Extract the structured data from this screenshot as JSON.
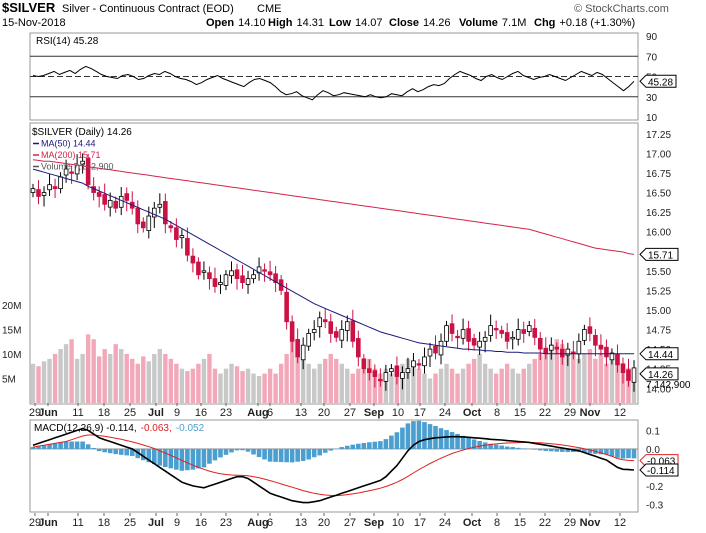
{
  "header": {
    "symbol": "$SILVER",
    "name": "Silver - Continuous Contract (EOD)",
    "exchange": "CME",
    "watermark": "© StockCharts.com",
    "date": "15-Nov-2018",
    "open_label": "Open",
    "open": "14.10",
    "high_label": "High",
    "high": "14.31",
    "low_label": "Low",
    "low": "14.07",
    "close_label": "Close",
    "close": "14.26",
    "volume_label": "Volume",
    "volume": "7.1M",
    "chg_label": "Chg",
    "chg": "+0.18 (+1.30%)"
  },
  "colors": {
    "up": "#000000",
    "down": "#cc1144",
    "ma50": "#1a1a7a",
    "ma200": "#d6234a",
    "volume_up": "#c8c8c8",
    "volume_down": "#f2a8b8",
    "macd_hist": "#4a9fd0",
    "macd_line": "#000000",
    "macd_signal": "#e02020",
    "rsi_line": "#000000"
  },
  "chart_data": [
    {
      "type": "line",
      "panel": "rsi",
      "label": "RSI(14) 45.28",
      "y_ticks": [
        10,
        30,
        50,
        70,
        90
      ],
      "ylim": [
        10,
        90
      ],
      "reference_lines": [
        30,
        50,
        70
      ],
      "last_value_tag": "45.28",
      "values": [
        51,
        50,
        51,
        53,
        55,
        52,
        54,
        56,
        53,
        57,
        60,
        58,
        55,
        52,
        50,
        49,
        48,
        51,
        52,
        50,
        47,
        48,
        51,
        53,
        52,
        55,
        53,
        50,
        48,
        47,
        45,
        42,
        44,
        47,
        49,
        51,
        48,
        46,
        44,
        42,
        40,
        44,
        47,
        48,
        46,
        44,
        40,
        35,
        32,
        33,
        35,
        31,
        29,
        27,
        32,
        36,
        34,
        31,
        32,
        34,
        33,
        32,
        31,
        30,
        32,
        30,
        29,
        30,
        33,
        32,
        31,
        35,
        38,
        35,
        37,
        40,
        42,
        41,
        43,
        48,
        52,
        55,
        53,
        51,
        48,
        46,
        50,
        52,
        49,
        47,
        50,
        53,
        55,
        51,
        49,
        47,
        49,
        50,
        52,
        50,
        48,
        46,
        49,
        52,
        55,
        53,
        51,
        54,
        52,
        48,
        44,
        40,
        36,
        40,
        45.28
      ]
    },
    {
      "type": "candlestick",
      "panel": "price",
      "label": "$SILVER (Daily) 14.26",
      "y_ticks": [
        "14.00",
        "14.25",
        "14.50",
        "14.75",
        "15.00",
        "15.25",
        "15.50",
        "15.75",
        "16.00",
        "16.25",
        "16.50",
        "16.75",
        "17.00",
        "17.25"
      ],
      "ylim": [
        13.85,
        17.35
      ],
      "volume_ticks": [
        "5M",
        "10M",
        "15M",
        "20M"
      ],
      "volume_ylim": [
        0,
        21
      ],
      "closes": [
        16.55,
        16.45,
        16.5,
        16.6,
        16.55,
        16.7,
        16.8,
        16.75,
        16.85,
        16.9,
        16.6,
        16.5,
        16.45,
        16.35,
        16.4,
        16.3,
        16.45,
        16.4,
        16.3,
        16.1,
        16.05,
        16.2,
        16.3,
        16.35,
        16.1,
        16.05,
        15.9,
        15.95,
        15.7,
        15.6,
        15.45,
        15.5,
        15.4,
        15.3,
        15.35,
        15.45,
        15.5,
        15.4,
        15.35,
        15.4,
        15.45,
        15.55,
        15.5,
        15.45,
        15.35,
        15.25,
        14.85,
        14.6,
        14.4,
        14.55,
        14.7,
        14.75,
        14.9,
        14.85,
        14.7,
        14.65,
        14.75,
        14.85,
        14.6,
        14.4,
        14.25,
        14.2,
        14.15,
        14.1,
        14.2,
        14.25,
        14.15,
        14.2,
        14.25,
        14.35,
        14.3,
        14.4,
        14.5,
        14.45,
        14.6,
        14.8,
        14.7,
        14.65,
        14.75,
        14.6,
        14.55,
        14.6,
        14.65,
        14.8,
        14.75,
        14.7,
        14.6,
        14.65,
        14.75,
        14.7,
        14.8,
        14.65,
        14.5,
        14.45,
        14.55,
        14.5,
        14.4,
        14.5,
        14.45,
        14.6,
        14.75,
        14.7,
        14.55,
        14.5,
        14.4,
        14.45,
        14.3,
        14.2,
        14.1,
        14.26
      ],
      "volumes": [
        8,
        7.5,
        8.5,
        9,
        10,
        11,
        12,
        13,
        9,
        10,
        14,
        13,
        9.5,
        11,
        10,
        12,
        11,
        10,
        9,
        8,
        9.5,
        8.5,
        10,
        11,
        10,
        9,
        8,
        7,
        6.5,
        7,
        8,
        9,
        10,
        7,
        6,
        7,
        8,
        7.5,
        6.5,
        7,
        6,
        5.5,
        6,
        7,
        6,
        8,
        10,
        14,
        12,
        9,
        8,
        7,
        8,
        9,
        10,
        9,
        8,
        7,
        6,
        7,
        8,
        9,
        7,
        6,
        7,
        6,
        7,
        8,
        9,
        8,
        7,
        6,
        5,
        6,
        7,
        8,
        7,
        6,
        7,
        8,
        9,
        10,
        8,
        7,
        6,
        7,
        8,
        7,
        6,
        7,
        8,
        9,
        10,
        11,
        12,
        13,
        12,
        11,
        10,
        9,
        10,
        11,
        9,
        10,
        8,
        9,
        10,
        8,
        7.1,
        7.1
      ],
      "ma50": [
        16.8,
        16.78,
        16.76,
        16.74,
        16.72,
        16.7,
        16.68,
        16.66,
        16.64,
        16.62,
        16.58,
        16.55,
        16.52,
        16.49,
        16.46,
        16.43,
        16.4,
        16.37,
        16.34,
        16.31,
        16.28,
        16.25,
        16.22,
        16.19,
        16.16,
        16.12,
        16.08,
        16.04,
        16.0,
        15.96,
        15.92,
        15.88,
        15.84,
        15.8,
        15.76,
        15.72,
        15.68,
        15.64,
        15.6,
        15.56,
        15.52,
        15.48,
        15.44,
        15.4,
        15.36,
        15.32,
        15.28,
        15.24,
        15.2,
        15.16,
        15.12,
        15.08,
        15.05,
        15.02,
        14.99,
        14.96,
        14.93,
        14.9,
        14.87,
        14.84,
        14.81,
        14.78,
        14.75,
        14.72,
        14.7,
        14.68,
        14.66,
        14.64,
        14.62,
        14.6,
        14.58,
        14.57,
        14.56,
        14.55,
        14.54,
        14.53,
        14.52,
        14.51,
        14.5,
        14.5,
        14.49,
        14.49,
        14.48,
        14.48,
        14.47,
        14.47,
        14.46,
        14.46,
        14.46,
        14.45,
        14.45,
        14.45,
        14.45,
        14.44,
        14.44,
        14.44,
        14.44,
        14.44,
        14.44,
        14.44,
        14.44,
        14.44,
        14.44,
        14.44,
        14.44,
        14.44,
        14.44,
        14.44,
        14.44,
        14.44
      ],
      "ma200": [
        16.92,
        16.91,
        16.9,
        16.9,
        16.89,
        16.88,
        16.87,
        16.86,
        16.85,
        16.84,
        16.83,
        16.82,
        16.81,
        16.8,
        16.79,
        16.78,
        16.77,
        16.76,
        16.75,
        16.74,
        16.73,
        16.72,
        16.71,
        16.7,
        16.69,
        16.68,
        16.67,
        16.66,
        16.65,
        16.64,
        16.63,
        16.62,
        16.61,
        16.6,
        16.59,
        16.58,
        16.57,
        16.56,
        16.55,
        16.54,
        16.53,
        16.52,
        16.51,
        16.5,
        16.49,
        16.48,
        16.47,
        16.46,
        16.45,
        16.44,
        16.43,
        16.42,
        16.41,
        16.4,
        16.39,
        16.38,
        16.37,
        16.36,
        16.35,
        16.34,
        16.33,
        16.32,
        16.31,
        16.3,
        16.29,
        16.28,
        16.27,
        16.26,
        16.25,
        16.24,
        16.23,
        16.22,
        16.21,
        16.2,
        16.19,
        16.18,
        16.17,
        16.16,
        16.15,
        16.14,
        16.13,
        16.12,
        16.11,
        16.1,
        16.09,
        16.08,
        16.07,
        16.06,
        16.05,
        16.04,
        16.03,
        16.01,
        15.99,
        15.97,
        15.95,
        15.93,
        15.91,
        15.89,
        15.87,
        15.85,
        15.83,
        15.81,
        15.79,
        15.78,
        15.77,
        15.76,
        15.75,
        15.74,
        15.72,
        15.71
      ],
      "legend": [
        "$SILVER (Daily) 14.26",
        "MA(50) 14.44",
        "MA(200) 15.71",
        "Volume 7,142,900"
      ],
      "last_value_tags": {
        "ma200": "15.71",
        "ma50": "14.44",
        "close": "14.26",
        "volume": "7,142,900"
      }
    },
    {
      "type": "macd",
      "panel": "macd",
      "label": "MACD(12,26,9) -0.114, -0.063, -0.052",
      "label_main": "MACD(12,26,9) -0.114,",
      "label_signal": "-0.063,",
      "label_hist": "-0.052",
      "y_ticks": [
        "0.1",
        "0.0",
        "-0.1",
        "-0.2",
        "-0.3"
      ],
      "ylim": [
        -0.33,
        0.14
      ],
      "last_value_tags": {
        "signal": "-0.063",
        "macd": "-0.114"
      },
      "macd": [
        0.02,
        0.03,
        0.04,
        0.05,
        0.06,
        0.07,
        0.08,
        0.09,
        0.1,
        0.11,
        0.1,
        0.08,
        0.06,
        0.05,
        0.04,
        0.03,
        0.02,
        0.01,
        0.0,
        -0.02,
        -0.04,
        -0.06,
        -0.08,
        -0.1,
        -0.12,
        -0.14,
        -0.16,
        -0.18,
        -0.19,
        -0.2,
        -0.205,
        -0.21,
        -0.2,
        -0.19,
        -0.18,
        -0.17,
        -0.16,
        -0.15,
        -0.15,
        -0.16,
        -0.18,
        -0.2,
        -0.22,
        -0.24,
        -0.25,
        -0.26,
        -0.27,
        -0.28,
        -0.285,
        -0.29,
        -0.29,
        -0.285,
        -0.28,
        -0.27,
        -0.26,
        -0.25,
        -0.24,
        -0.23,
        -0.22,
        -0.21,
        -0.2,
        -0.19,
        -0.18,
        -0.17,
        -0.15,
        -0.12,
        -0.09,
        -0.05,
        -0.01,
        0.02,
        0.04,
        0.05,
        0.055,
        0.06,
        0.062,
        0.065,
        0.066,
        0.066,
        0.065,
        0.063,
        0.06,
        0.058,
        0.055,
        0.052,
        0.05,
        0.048,
        0.045,
        0.043,
        0.04,
        0.038,
        0.035,
        0.03,
        0.025,
        0.02,
        0.015,
        0.01,
        0.005,
        0.0,
        -0.005,
        -0.01,
        -0.02,
        -0.03,
        -0.04,
        -0.05,
        -0.06,
        -0.08,
        -0.1,
        -0.11,
        -0.112,
        -0.114
      ],
      "signal": [
        0.01,
        0.015,
        0.02,
        0.025,
        0.03,
        0.035,
        0.04,
        0.05,
        0.06,
        0.07,
        0.075,
        0.075,
        0.072,
        0.068,
        0.063,
        0.058,
        0.052,
        0.045,
        0.038,
        0.03,
        0.021,
        0.012,
        0.002,
        -0.01,
        -0.022,
        -0.035,
        -0.048,
        -0.062,
        -0.075,
        -0.088,
        -0.1,
        -0.11,
        -0.12,
        -0.128,
        -0.134,
        -0.138,
        -0.141,
        -0.142,
        -0.143,
        -0.145,
        -0.15,
        -0.156,
        -0.163,
        -0.171,
        -0.18,
        -0.189,
        -0.198,
        -0.207,
        -0.216,
        -0.225,
        -0.233,
        -0.24,
        -0.245,
        -0.249,
        -0.251,
        -0.252,
        -0.25,
        -0.247,
        -0.243,
        -0.238,
        -0.232,
        -0.226,
        -0.219,
        -0.212,
        -0.203,
        -0.192,
        -0.18,
        -0.165,
        -0.148,
        -0.13,
        -0.112,
        -0.095,
        -0.079,
        -0.064,
        -0.05,
        -0.037,
        -0.025,
        -0.015,
        -0.006,
        0.002,
        0.009,
        0.015,
        0.02,
        0.024,
        0.027,
        0.03,
        0.032,
        0.033,
        0.034,
        0.035,
        0.035,
        0.034,
        0.033,
        0.031,
        0.028,
        0.025,
        0.021,
        0.017,
        0.012,
        0.007,
        0.001,
        -0.006,
        -0.013,
        -0.021,
        -0.03,
        -0.04,
        -0.052,
        -0.058,
        -0.062,
        -0.063
      ]
    }
  ],
  "x_axis": {
    "labels": [
      "29",
      "Jun",
      "11",
      "18",
      "25",
      "Jul",
      "9",
      "16",
      "23",
      "Aug",
      "6",
      "13",
      "20",
      "27",
      "Sep",
      "10",
      "17",
      "24",
      "Oct",
      "8",
      "15",
      "22",
      "29",
      "Nov",
      "12"
    ]
  }
}
